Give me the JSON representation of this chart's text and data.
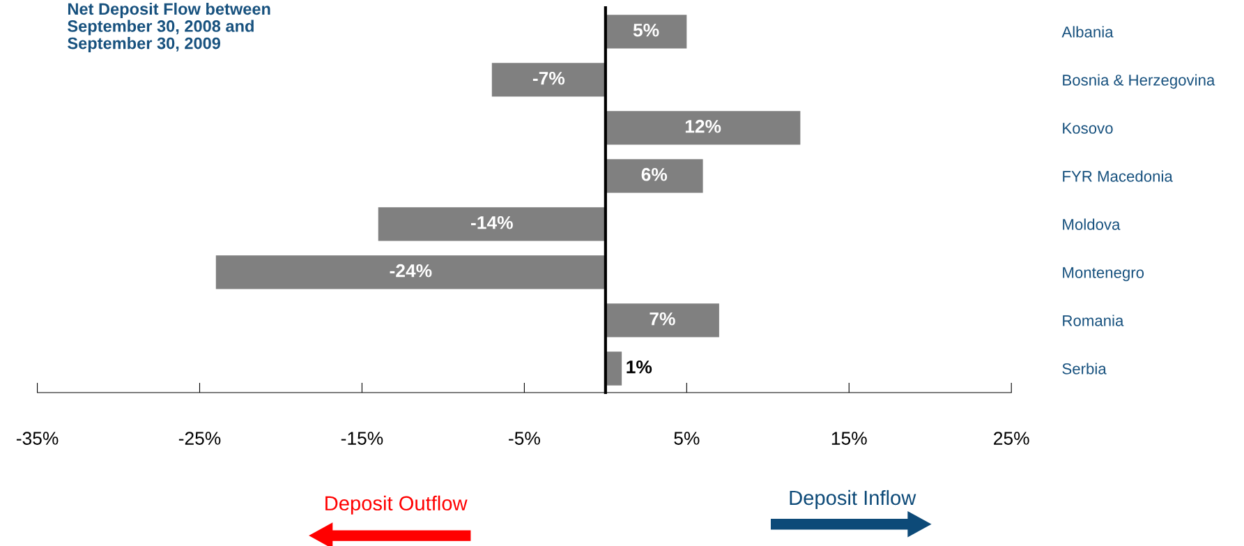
{
  "chart_data": {
    "type": "bar",
    "orientation": "horizontal",
    "title": "Net Deposit Flow between\nSeptember 30, 2008 and\nSeptember 30, 2009",
    "categories": [
      "Albania",
      "Bosnia & Herzegovina",
      "Kosovo",
      "FYR Macedonia",
      "Moldova",
      "Montenegro",
      "Romania",
      "Serbia"
    ],
    "values": [
      5,
      -7,
      12,
      6,
      -14,
      -24,
      7,
      1
    ],
    "value_labels": [
      "5%",
      "-7%",
      "12%",
      "6%",
      "-14%",
      "-24%",
      "7%",
      "1%"
    ],
    "color": "#808080",
    "xlim": [
      -35,
      25
    ],
    "xticks": [
      {
        "value": -35,
        "label": "-35%"
      },
      {
        "value": -25,
        "label": "-25%"
      },
      {
        "value": -15,
        "label": "-15%"
      },
      {
        "value": -5,
        "label": "-5%"
      },
      {
        "value": 5,
        "label": "5%"
      },
      {
        "value": 15,
        "label": "15%"
      },
      {
        "value": 25,
        "label": "25%"
      }
    ],
    "annotations": [
      "Deposit Outflow",
      "Deposit Inflow"
    ],
    "grid": false,
    "legend": false
  }
}
